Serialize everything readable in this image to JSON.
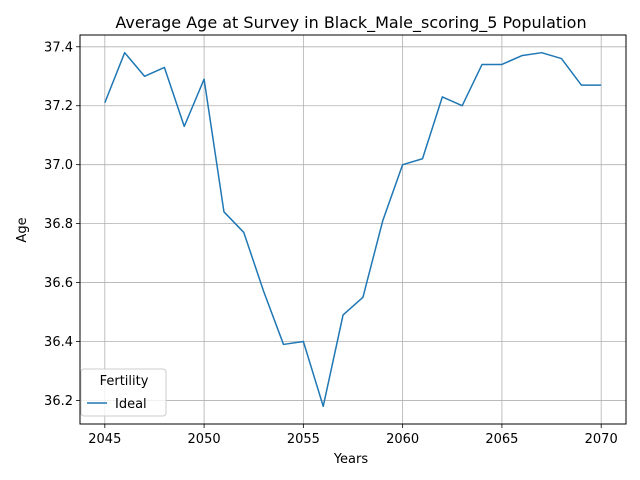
{
  "chart_data": {
    "type": "line",
    "title": "Average Age at Survey in Black_Male_scoring_5 Population",
    "xlabel": "Years",
    "ylabel": "Age",
    "xlim": [
      2043.75,
      2071.25
    ],
    "ylim": [
      36.12,
      37.44
    ],
    "x_ticks": [
      2045,
      2050,
      2055,
      2060,
      2065,
      2070
    ],
    "y_ticks": [
      36.2,
      36.4,
      36.6,
      36.8,
      37.0,
      37.2,
      37.4
    ],
    "x_tick_labels": [
      "2045",
      "2050",
      "2055",
      "2060",
      "2065",
      "2070"
    ],
    "y_tick_labels": [
      "36.2",
      "36.4",
      "36.6",
      "36.8",
      "37.0",
      "37.2",
      "37.4"
    ],
    "grid": true,
    "legend": {
      "title": "Fertility",
      "placement": "lower-left"
    },
    "series": [
      {
        "name": "Ideal",
        "color": "#1f77b4",
        "x": [
          2045,
          2046,
          2047,
          2048,
          2049,
          2050,
          2051,
          2052,
          2053,
          2054,
          2055,
          2056,
          2057,
          2058,
          2059,
          2060,
          2061,
          2062,
          2063,
          2064,
          2065,
          2066,
          2067,
          2068,
          2069,
          2070
        ],
        "values": [
          37.21,
          37.38,
          37.3,
          37.33,
          37.13,
          37.29,
          36.84,
          36.77,
          36.57,
          36.39,
          36.4,
          36.18,
          36.49,
          36.55,
          36.81,
          37.0,
          37.02,
          37.23,
          37.2,
          37.34,
          37.34,
          37.37,
          37.38,
          37.36,
          37.27,
          37.27
        ]
      }
    ]
  }
}
